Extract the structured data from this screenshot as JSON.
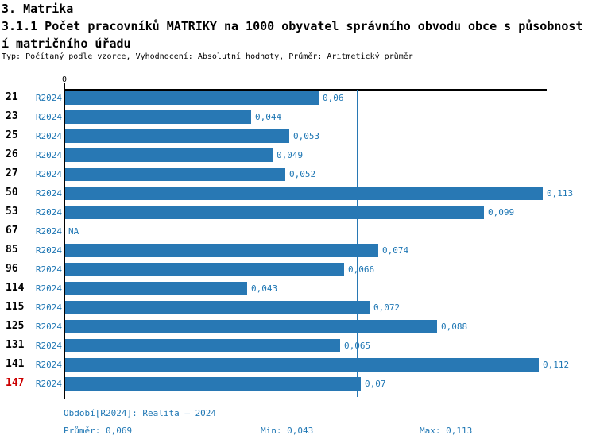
{
  "header": {
    "title": "3. Matrika",
    "subtitle_lines": [
      "3.1.1 Počet pracovníků MATRIKY na 1000 obyvatel správního obvodu obce s působnost",
      "í matričního úřadu"
    ],
    "meta": "Typ: Počítaný podle vzorce, Vyhodnocení: Absolutní hodnoty, Průměr: Aritmetický průměr"
  },
  "chart_data": {
    "type": "bar",
    "orientation": "horizontal",
    "axis_origin_label": "0",
    "period_label": "R2024",
    "categories": [
      "21",
      "23",
      "25",
      "26",
      "27",
      "50",
      "53",
      "67",
      "85",
      "96",
      "114",
      "115",
      "125",
      "131",
      "141",
      "147"
    ],
    "values": [
      0.06,
      0.044,
      0.053,
      0.049,
      0.052,
      0.113,
      0.099,
      null,
      0.074,
      0.066,
      0.043,
      0.072,
      0.088,
      0.065,
      0.112,
      0.07
    ],
    "value_labels": [
      "0,06",
      "0,044",
      "0,053",
      "0,049",
      "0,052",
      "0,113",
      "0,099",
      "NA",
      "0,074",
      "0,066",
      "0,043",
      "0,072",
      "0,088",
      "0,065",
      "0,112",
      "0,07"
    ],
    "na_label": "NA",
    "highlighted_category_index": 15,
    "average": 0.069,
    "min": 0.043,
    "max": 0.113,
    "xlim": [
      0,
      0.1138
    ],
    "grid": false,
    "legend": false,
    "colors": {
      "bar": "#2878b4",
      "blue_text": "#1f77b4",
      "highlight_text": "#cc0000",
      "axis": "#000000",
      "average_line": "#2878b4"
    }
  },
  "footer": {
    "period_note": "Období[R2024]: Realita – 2024",
    "average_label": "Průměr: 0,069",
    "min_label": "Min: 0,043",
    "max_label": "Max: 0,113"
  }
}
